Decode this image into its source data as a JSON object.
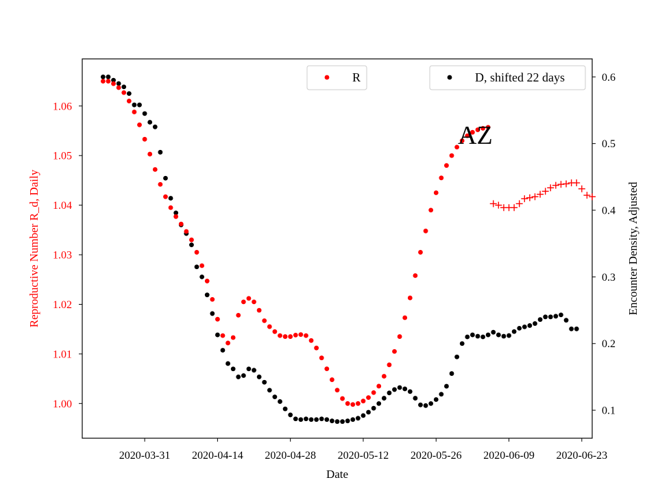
{
  "chart_data": {
    "type": "scatter",
    "xlabel": "Date",
    "ylabel_left": "Reproductive Number R_d, Daily",
    "ylabel_right": "Encounter Density, Adjusted",
    "annotation": "AZ",
    "x_range": [
      "2020-03-19",
      "2020-06-25"
    ],
    "ylim_left": [
      0.993,
      1.0695
    ],
    "ylim_right": [
      0.058,
      0.627
    ],
    "x_ticks": [
      "2020-03-31",
      "2020-04-14",
      "2020-04-28",
      "2020-05-12",
      "2020-05-26",
      "2020-06-09",
      "2020-06-23"
    ],
    "y_left_ticks": [
      1.0,
      1.01,
      1.02,
      1.03,
      1.04,
      1.05,
      1.06
    ],
    "y_left_tick_labels": [
      "1.00",
      "1.01",
      "1.02",
      "1.03",
      "1.04",
      "1.05",
      "1.06"
    ],
    "y_right_ticks": [
      0.1,
      0.2,
      0.3,
      0.4,
      0.5,
      0.6
    ],
    "y_right_tick_labels": [
      "0.1",
      "0.2",
      "0.3",
      "0.4",
      "0.5",
      "0.6"
    ],
    "grid": false,
    "legends": [
      {
        "label": "R",
        "color": "#ff0000",
        "marker": "dot",
        "placement": "top-center"
      },
      {
        "label": "D, shifted 22 days",
        "color": "#000000",
        "marker": "dot",
        "placement": "top-right"
      }
    ],
    "series": [
      {
        "name": "R",
        "axis": "left",
        "marker": "dot",
        "color": "#ff0000",
        "start_date": "2020-03-23",
        "values": [
          1.065,
          1.065,
          1.0645,
          1.0637,
          1.0627,
          1.061,
          1.0588,
          1.0562,
          1.0533,
          1.0503,
          1.0472,
          1.0442,
          1.0417,
          1.0395,
          1.0377,
          1.0362,
          1.0347,
          1.033,
          1.0305,
          1.0278,
          1.0247,
          1.021,
          1.017,
          1.0137,
          1.0122,
          1.0133,
          1.0178,
          1.0205,
          1.0212,
          1.0205,
          1.0188,
          1.0167,
          1.0155,
          1.0145,
          1.0137,
          1.0135,
          1.0135,
          1.0138,
          1.0139,
          1.0137,
          1.0127,
          1.0112,
          1.0092,
          1.007,
          1.0048,
          1.0027,
          1.001,
          1.0,
          0.9998,
          1.0,
          1.0005,
          1.0012,
          1.0022,
          1.0035,
          1.0055,
          1.0078,
          1.0105,
          1.0135,
          1.0173,
          1.0213,
          1.0258,
          1.0305,
          1.0348,
          1.039,
          1.0425,
          1.0455,
          1.048,
          1.05,
          1.0517,
          1.053,
          1.054,
          1.0547,
          1.0552,
          1.0555,
          1.0557
        ]
      },
      {
        "name": "R (continued)",
        "axis": "left",
        "marker": "plus",
        "color": "#ff0000",
        "start_date": "2020-06-06",
        "values": [
          1.0403,
          1.04,
          1.0395,
          1.0395,
          1.0395,
          1.0403,
          1.0413,
          1.0415,
          1.0417,
          1.0422,
          1.0428,
          1.0435,
          1.044,
          1.0442,
          1.0443,
          1.0445,
          1.0445,
          1.0433,
          1.042,
          1.0417
        ]
      },
      {
        "name": "D, shifted 22 days",
        "axis": "right",
        "marker": "dot",
        "color": "#000000",
        "start_date": "2020-03-23",
        "values": [
          0.6,
          0.6,
          0.595,
          0.59,
          0.585,
          0.575,
          0.558,
          0.558,
          0.545,
          0.532,
          0.525,
          0.487,
          0.448,
          0.418,
          0.396,
          0.378,
          0.365,
          0.348,
          0.315,
          0.3,
          0.273,
          0.245,
          0.213,
          0.19,
          0.17,
          0.162,
          0.15,
          0.152,
          0.162,
          0.16,
          0.15,
          0.142,
          0.13,
          0.12,
          0.113,
          0.102,
          0.093,
          0.087,
          0.086,
          0.087,
          0.086,
          0.086,
          0.087,
          0.086,
          0.084,
          0.083,
          0.083,
          0.084,
          0.086,
          0.088,
          0.092,
          0.097,
          0.103,
          0.11,
          0.118,
          0.126,
          0.131,
          0.134,
          0.132,
          0.128,
          0.118,
          0.108,
          0.107,
          0.11,
          0.116,
          0.124,
          0.136,
          0.155,
          0.18,
          0.2,
          0.21,
          0.213,
          0.211,
          0.21,
          0.213,
          0.217,
          0.213,
          0.211,
          0.212,
          0.218,
          0.223,
          0.225,
          0.227,
          0.23,
          0.236,
          0.24,
          0.24,
          0.241,
          0.243,
          0.235,
          0.222,
          0.222
        ]
      }
    ]
  }
}
